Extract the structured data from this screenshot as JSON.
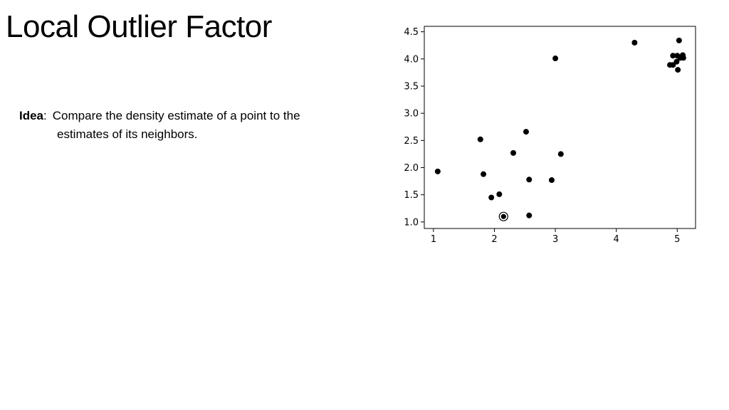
{
  "slide": {
    "title": "Local Outlier Factor",
    "idea_label": "Idea",
    "idea_separator": ":",
    "idea_text_line1": "Compare the density estimate of a point to the",
    "idea_text_line2": "estimates of its neighbors."
  },
  "chart_data": {
    "type": "scatter",
    "title": "",
    "xlabel": "",
    "ylabel": "",
    "xlim": [
      0.85,
      5.3
    ],
    "ylim": [
      0.88,
      4.6
    ],
    "x_ticks": [
      1,
      2,
      3,
      4,
      5
    ],
    "y_ticks": [
      1.0,
      1.5,
      2.0,
      2.5,
      3.0,
      3.5,
      4.0,
      4.5
    ],
    "grid": false,
    "marker_color": "#000000",
    "points": [
      {
        "x": 1.07,
        "y": 1.93
      },
      {
        "x": 1.77,
        "y": 2.52
      },
      {
        "x": 1.82,
        "y": 1.88
      },
      {
        "x": 1.95,
        "y": 1.45
      },
      {
        "x": 2.08,
        "y": 1.51
      },
      {
        "x": 2.31,
        "y": 2.27
      },
      {
        "x": 2.52,
        "y": 2.66
      },
      {
        "x": 2.57,
        "y": 1.78
      },
      {
        "x": 2.57,
        "y": 1.12
      },
      {
        "x": 2.94,
        "y": 1.77
      },
      {
        "x": 3.0,
        "y": 4.01
      },
      {
        "x": 3.09,
        "y": 2.25
      },
      {
        "x": 4.3,
        "y": 4.3
      },
      {
        "x": 4.88,
        "y": 3.89
      },
      {
        "x": 4.93,
        "y": 3.89
      },
      {
        "x": 4.93,
        "y": 4.06
      },
      {
        "x": 4.99,
        "y": 3.95
      },
      {
        "x": 5.0,
        "y": 4.06
      },
      {
        "x": 5.01,
        "y": 3.8
      },
      {
        "x": 5.03,
        "y": 4.34
      },
      {
        "x": 5.05,
        "y": 4.02
      },
      {
        "x": 5.09,
        "y": 4.07
      },
      {
        "x": 5.1,
        "y": 4.02
      }
    ],
    "highlighted_point": {
      "x": 2.15,
      "y": 1.1
    }
  }
}
